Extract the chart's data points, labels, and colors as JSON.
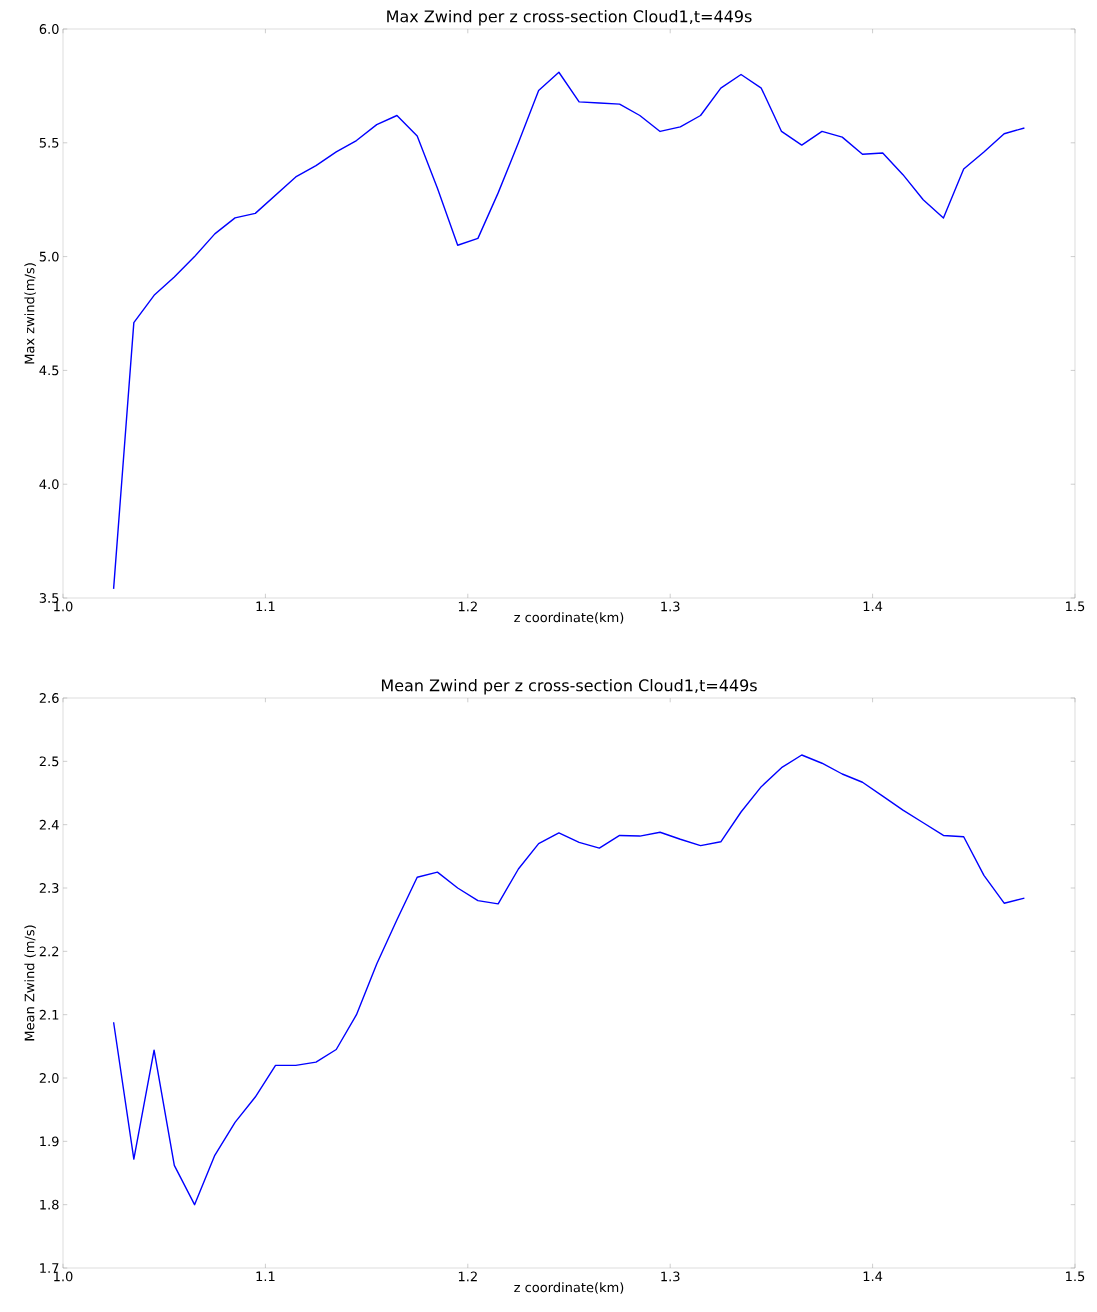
{
  "chart_data": [
    {
      "type": "line",
      "title": "Max Zwind per z cross-section Cloud1,t=449s",
      "xlabel": "z coordinate(km)",
      "ylabel": "Max zwind(m/s)",
      "x": [
        1.025,
        1.035,
        1.045,
        1.055,
        1.065,
        1.075,
        1.085,
        1.095,
        1.105,
        1.115,
        1.125,
        1.135,
        1.145,
        1.155,
        1.165,
        1.175,
        1.185,
        1.195,
        1.205,
        1.215,
        1.225,
        1.235,
        1.245,
        1.255,
        1.265,
        1.275,
        1.285,
        1.295,
        1.305,
        1.315,
        1.325,
        1.335,
        1.345,
        1.355,
        1.365,
        1.375,
        1.385,
        1.395,
        1.405,
        1.415,
        1.425,
        1.435,
        1.445,
        1.455,
        1.465,
        1.475
      ],
      "series": [
        {
          "color": "#0000ff",
          "values": [
            3.54,
            4.71,
            4.83,
            4.91,
            5.0,
            5.1,
            5.17,
            5.19,
            5.27,
            5.35,
            5.4,
            5.46,
            5.51,
            5.58,
            5.62,
            5.53,
            5.3,
            5.05,
            5.08,
            5.28,
            5.5,
            5.73,
            5.81,
            5.68,
            5.675,
            5.67,
            5.62,
            5.55,
            5.57,
            5.62,
            5.74,
            5.8,
            5.74,
            5.55,
            5.49,
            5.55,
            5.525,
            5.45,
            5.455,
            5.36,
            5.25,
            5.17,
            5.385,
            5.46,
            5.54,
            5.565
          ]
        }
      ],
      "xlim": [
        1.0,
        1.5
      ],
      "ylim": [
        3.5,
        6.0
      ],
      "xticks": [
        {
          "value": 1.0,
          "label": "1.0"
        },
        1.1,
        1.2,
        1.3,
        1.4,
        1.5
      ],
      "yticks": [
        3.5,
        {
          "value": 4.0,
          "label": "4.0"
        },
        4.5,
        {
          "value": 5.0,
          "label": "5.0"
        },
        5.5,
        {
          "value": 6.0,
          "label": "6.0"
        }
      ]
    },
    {
      "type": "line",
      "title": "Mean Zwind per z cross-section Cloud1,t=449s",
      "xlabel": "z coordinate(km)",
      "ylabel": "Mean Zwind (m/s)",
      "x": [
        1.025,
        1.035,
        1.045,
        1.055,
        1.065,
        1.075,
        1.085,
        1.095,
        1.105,
        1.115,
        1.125,
        1.135,
        1.145,
        1.155,
        1.165,
        1.175,
        1.185,
        1.195,
        1.205,
        1.215,
        1.225,
        1.235,
        1.245,
        1.255,
        1.265,
        1.275,
        1.285,
        1.295,
        1.305,
        1.315,
        1.325,
        1.335,
        1.345,
        1.355,
        1.365,
        1.375,
        1.385,
        1.395,
        1.405,
        1.415,
        1.425,
        1.435,
        1.445,
        1.455,
        1.465,
        1.475
      ],
      "series": [
        {
          "color": "#0000ff",
          "values": [
            2.088,
            1.872,
            2.044,
            1.862,
            1.8,
            1.878,
            1.93,
            1.97,
            2.02,
            2.02,
            2.025,
            2.045,
            2.1,
            2.18,
            2.25,
            2.317,
            2.325,
            2.3,
            2.28,
            2.275,
            2.33,
            2.37,
            2.387,
            2.372,
            2.363,
            2.383,
            2.382,
            2.388,
            2.377,
            2.367,
            2.373,
            2.42,
            2.46,
            2.49,
            2.51,
            2.497,
            2.48,
            2.467,
            2.445,
            2.423,
            2.403,
            2.383,
            2.381,
            2.32,
            2.276,
            2.284
          ]
        }
      ],
      "xlim": [
        1.0,
        1.5
      ],
      "ylim": [
        1.7,
        2.6
      ],
      "xticks": [
        {
          "value": 1.0,
          "label": "1.0"
        },
        1.1,
        1.2,
        1.3,
        1.4,
        1.5
      ],
      "yticks": [
        1.7,
        1.8,
        1.9,
        {
          "value": 2.0,
          "label": "2.0"
        },
        2.1,
        2.2,
        2.3,
        2.4,
        2.5,
        2.6
      ]
    }
  ]
}
